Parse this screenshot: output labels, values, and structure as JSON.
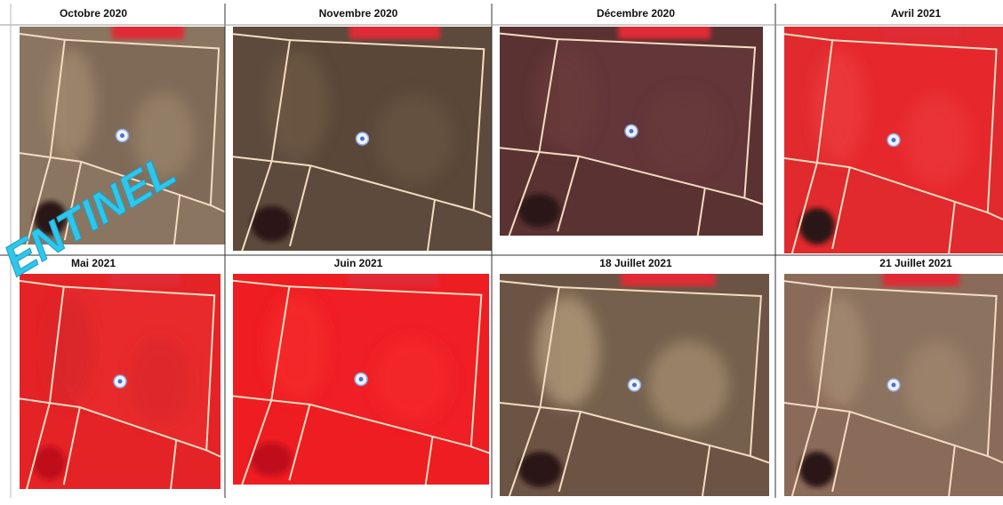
{
  "panels": [
    {
      "label": "Octobre 2020"
    },
    {
      "label": "Novembre 2020"
    },
    {
      "label": "Décembre 2020"
    },
    {
      "label": "Avril 2021"
    },
    {
      "label": "Mai 2021"
    },
    {
      "label": "Juin 2021"
    },
    {
      "label": "18 Juillet 2021"
    },
    {
      "label": "21 Juillet 2021"
    }
  ],
  "watermark": "ENTINEL"
}
